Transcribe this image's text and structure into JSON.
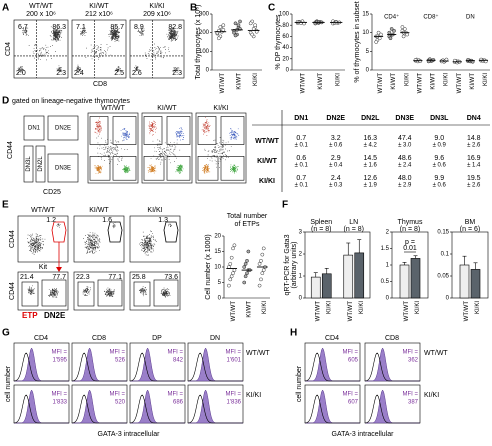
{
  "panel_labels": [
    "A",
    "B",
    "C",
    "D",
    "E",
    "F",
    "G",
    "H"
  ],
  "A": {
    "y_axis": "CD4",
    "x_axis": "CD8",
    "plots": [
      {
        "genotype": "WT/WT",
        "count": "200 x 10⁶",
        "quadrants": [
          "6.7",
          "86.3",
          "2.0",
          "2.3"
        ]
      },
      {
        "genotype": "KI/WT",
        "count": "212 x10⁶",
        "quadrants": [
          "7.1",
          "85.7",
          "2.4",
          "2.5"
        ]
      },
      {
        "genotype": "KI/KI",
        "count": "209 x10⁶",
        "quadrants": [
          "8.9",
          "82.8",
          "2.6",
          "2.3"
        ]
      }
    ]
  },
  "D": {
    "gate_label": "gated on lineage-negative thymocytes",
    "y_axis": "CD44",
    "x_axis": "CD25",
    "schematic": [
      "DN1",
      "DN2E",
      "DN2L",
      "DN3L",
      "DN3E"
    ],
    "genotypes": [
      "WT/WT",
      "KI/WT",
      "KI/KI"
    ],
    "table": {
      "columns": [
        "DN1",
        "DN2E",
        "DN2L",
        "DN3E",
        "DN3L",
        "DN4"
      ],
      "rows": [
        {
          "genotype": "WT/WT",
          "cells": [
            [
              "0.7",
              "± 0.1"
            ],
            [
              "3.2",
              "± 0.6"
            ],
            [
              "16.3",
              "± 4.2"
            ],
            [
              "47.4",
              "± 3.0"
            ],
            [
              "9.0",
              "± 0.9"
            ],
            [
              "14.8",
              "± 2.6"
            ]
          ]
        },
        {
          "genotype": "KI/WT",
          "cells": [
            [
              "0.6",
              "± 0.1"
            ],
            [
              "2.9",
              "± 0.4"
            ],
            [
              "14.5",
              "± 1.6"
            ],
            [
              "48.6",
              "± 2.4"
            ],
            [
              "9.6",
              "± 0.6"
            ],
            [
              "16.9",
              "± 1.4"
            ]
          ]
        },
        {
          "genotype": "KI/KI",
          "cells": [
            [
              "0.7",
              "± 0.1"
            ],
            [
              "2.4",
              "± 0.3"
            ],
            [
              "12.6",
              "± 1.9"
            ],
            [
              "48.0",
              "± 2.9"
            ],
            [
              "9.9",
              "± 0.6"
            ],
            [
              "19.5",
              "± 2.6"
            ]
          ]
        }
      ]
    }
  },
  "E": {
    "top_y": "CD44",
    "top_x": "Kit",
    "bottom_y": "CD44",
    "etp": "ETP",
    "dn2e": "DN2E",
    "plots": [
      {
        "genotype": "WT/WT",
        "gate": "1.2",
        "lower": [
          "21.4",
          "77.7"
        ]
      },
      {
        "genotype": "KI/WT",
        "gate": "1.6",
        "lower": [
          "22.3",
          "77.1"
        ]
      },
      {
        "genotype": "KI/KI",
        "gate": "1.3",
        "lower": [
          "25.8",
          "73.6"
        ]
      }
    ]
  },
  "G": {
    "x_axis": "GATA-3 intracellular",
    "y_axis": "cell number",
    "mfi_label": "MFI =",
    "columns": [
      "CD4",
      "CD8",
      "DP",
      "DN"
    ],
    "rows": [
      {
        "genotype": "WT/WT",
        "mfi": [
          "1'595",
          "526",
          "842",
          "1'601"
        ]
      },
      {
        "genotype": "KI/KI",
        "mfi": [
          "1'833",
          "520",
          "686",
          "1'836"
        ]
      }
    ]
  },
  "H": {
    "x_axis": "GATA-3 intracellular",
    "y_axis": "cell number",
    "mfi_label": "MFI =",
    "columns": [
      "CD4",
      "CD8"
    ],
    "rows": [
      {
        "genotype": "WT/WT",
        "mfi": [
          "605",
          "362"
        ]
      },
      {
        "genotype": "KI/KI",
        "mfi": [
          "607",
          "387"
        ]
      }
    ]
  },
  "chart_data": [
    {
      "type": "strip",
      "y_label": "Total thymocytes (x 10⁶)",
      "categories": [
        "WT/WT",
        "KI/WT",
        "KI/KI"
      ],
      "point_fills": [
        "#ffffff",
        "#aaaaaa",
        "#ffffff"
      ],
      "values": [
        [
          195,
          210,
          180,
          220,
          240,
          200,
          170,
          230,
          205,
          215
        ],
        [
          210,
          250,
          190,
          230,
          260,
          200,
          185,
          215,
          240,
          220
        ],
        [
          200,
          260,
          180,
          230,
          210,
          250,
          190,
          220,
          240,
          205
        ]
      ],
      "medians": [
        205,
        215,
        212
      ],
      "ylim": [
        0,
        300
      ],
      "yticks": [
        0,
        100,
        200,
        300
      ]
    },
    {
      "type": "strip",
      "y_label": "% DP thymocytes",
      "categories": [
        "WT/WT",
        "KI/WT",
        "KI/KI"
      ],
      "point_fills": [
        "#ffffff",
        "#aaaaaa",
        "#ffffff"
      ],
      "values": [
        [
          84,
          86,
          85,
          87,
          83,
          86,
          85,
          84
        ],
        [
          85,
          87,
          84,
          86,
          85,
          83,
          86,
          85
        ],
        [
          83,
          85,
          86,
          84,
          85,
          87,
          84,
          85
        ]
      ],
      "medians": [
        85,
        85,
        85
      ],
      "ylim": [
        0,
        100
      ],
      "yticks": [
        0,
        20,
        40,
        60,
        80,
        100
      ]
    },
    {
      "type": "strip",
      "y_label": "% of thymocytes in subset",
      "categories": [
        "WT/WT",
        "KI/WT",
        "KI/KI"
      ],
      "point_fills": [
        "#ffffff",
        "#aaaaaa",
        "#ffffff"
      ],
      "groups": [
        {
          "name": "CD4⁺",
          "values": [
            [
              9,
              8,
              10,
              8.5,
              9.5,
              7.5,
              9
            ],
            [
              10,
              9,
              11,
              9.5,
              10.5,
              9,
              8.5
            ],
            [
              10.5,
              9,
              11,
              10,
              9.5,
              11.5,
              10
            ]
          ],
          "medians": [
            9,
            9.5,
            10
          ]
        },
        {
          "name": "CD8⁺",
          "values": [
            [
              2.5,
              2.8,
              2.3,
              2.6,
              2.4,
              2.7
            ],
            [
              2.6,
              2.9,
              2.4,
              2.5,
              2.7,
              2.3
            ],
            [
              2.4,
              2.6,
              2.2,
              2.5,
              2.8,
              2.3
            ]
          ],
          "medians": [
            2.5,
            2.6,
            2.4
          ]
        },
        {
          "name": "DN",
          "values": [
            [
              2.1,
              2.4,
              2.0,
              2.3,
              2.2,
              2.5
            ],
            [
              2.4,
              2.6,
              2.3,
              2.5,
              2.2,
              2.7
            ],
            [
              2.5,
              2.7,
              2.4,
              2.6,
              2.3,
              2.8
            ]
          ],
          "medians": [
            2.2,
            2.5,
            2.6
          ]
        }
      ],
      "ylim": [
        0,
        15
      ],
      "yticks": [
        0,
        5,
        10,
        15
      ]
    },
    {
      "type": "strip",
      "title_lines": [
        "Total number",
        "of ETPs"
      ],
      "y_label": "Cell number (x 1000)",
      "categories": [
        "WT/WT",
        "KI/WT",
        "KI/KI"
      ],
      "point_fills": [
        "#ffffff",
        "#aaaaaa",
        "#ffffff"
      ],
      "values": [
        [
          4,
          6,
          7,
          8,
          9,
          10,
          11,
          13,
          16,
          17
        ],
        [
          5,
          7,
          8,
          9,
          9,
          10,
          11,
          12,
          15
        ],
        [
          4,
          6,
          8,
          9,
          10,
          11,
          12,
          14,
          16
        ]
      ],
      "medians": [
        9.5,
        9,
        10
      ],
      "ylim": [
        0,
        20
      ],
      "yticks": [
        0,
        5,
        10,
        15,
        20
      ]
    },
    {
      "type": "bar_panels",
      "y_label_lines": [
        "qRT-PCR for Gata3",
        "(arbitrary units)"
      ],
      "categories": [
        "WT/WT",
        "KI/KI"
      ],
      "colors": [
        "#eeeeee",
        "#5a636b"
      ],
      "axes": [
        {
          "ylim": [
            0,
            3
          ],
          "yticks": [
            0,
            1,
            2,
            3
          ],
          "groups": [
            {
              "name": "Spleen",
              "n": "(n = 8)",
              "values": [
                0.95,
                1.1
              ],
              "errors": [
                0.2,
                0.25
              ]
            },
            {
              "name": "LN",
              "n": "(n = 8)",
              "values": [
                1.95,
                2.05
              ],
              "errors": [
                0.55,
                0.6
              ]
            }
          ]
        },
        {
          "ylim": [
            0,
            2
          ],
          "yticks": [
            0,
            0.5,
            1,
            1.5,
            2
          ],
          "groups": [
            {
              "name": "Thymus",
              "n": "(n = 8)",
              "values": [
                1.0,
                1.2
              ],
              "errors": [
                0.08,
                0.08
              ],
              "annotation": [
                "p =",
                "0.01"
              ]
            }
          ]
        },
        {
          "ylim": [
            0,
            0.15
          ],
          "yticks": [
            0,
            0.05,
            0.1,
            0.15
          ],
          "groups": [
            {
              "name": "BM",
              "n": "(n = 6)",
              "values": [
                0.075,
                0.065
              ],
              "errors": [
                0.02,
                0.015
              ]
            }
          ]
        }
      ]
    }
  ]
}
